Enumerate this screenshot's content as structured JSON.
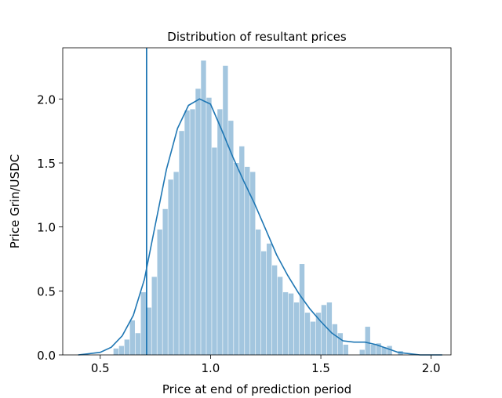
{
  "chart_data": {
    "type": "bar",
    "title": "Distribution of resultant prices",
    "xlabel": "Price at end of prediction period",
    "ylabel": "Price Grin/USDC",
    "xlim": [
      0.33,
      2.09
    ],
    "ylim": [
      0,
      2.4
    ],
    "xticks": [
      "0.5",
      "1.0",
      "1.5",
      "2.0"
    ],
    "yticks": [
      "0.0",
      "0.5",
      "1.0",
      "1.5",
      "2.0"
    ],
    "grid": false,
    "legend": "none",
    "bar_color": "#a3c6df",
    "line_color": "#1f77b4",
    "histogram": {
      "bin_start": 0.56,
      "bin_width": 0.0248,
      "densities": [
        0.05,
        0.07,
        0.12,
        0.27,
        0.17,
        0.49,
        0.37,
        0.61,
        0.98,
        1.14,
        1.37,
        1.43,
        1.75,
        1.91,
        1.92,
        2.08,
        2.3,
        2.01,
        1.62,
        1.92,
        2.26,
        1.83,
        1.5,
        1.63,
        1.47,
        1.43,
        0.98,
        0.81,
        0.87,
        0.7,
        0.61,
        0.49,
        0.48,
        0.41,
        0.71,
        0.33,
        0.26,
        0.33,
        0.39,
        0.41,
        0.24,
        0.17,
        0.08,
        0.0,
        0.0,
        0.04,
        0.22,
        0.08,
        0.09,
        0.06,
        0.07,
        0.0,
        0.03,
        0.0,
        0.0,
        0.0,
        0.0
      ]
    },
    "kde": {
      "x": [
        0.4,
        0.45,
        0.5,
        0.55,
        0.6,
        0.65,
        0.7,
        0.75,
        0.8,
        0.85,
        0.9,
        0.95,
        1.0,
        1.05,
        1.1,
        1.15,
        1.2,
        1.25,
        1.3,
        1.35,
        1.4,
        1.45,
        1.5,
        1.55,
        1.6,
        1.65,
        1.7,
        1.75,
        1.8,
        1.85,
        1.9,
        1.95,
        2.0,
        2.05
      ],
      "y": [
        0.0,
        0.01,
        0.02,
        0.06,
        0.15,
        0.31,
        0.59,
        1.02,
        1.45,
        1.77,
        1.95,
        2.0,
        1.96,
        1.76,
        1.55,
        1.36,
        1.18,
        0.98,
        0.78,
        0.62,
        0.48,
        0.36,
        0.26,
        0.17,
        0.11,
        0.1,
        0.1,
        0.08,
        0.05,
        0.02,
        0.01,
        0.0,
        0.0,
        0.0
      ]
    },
    "vline_x": 0.71
  }
}
